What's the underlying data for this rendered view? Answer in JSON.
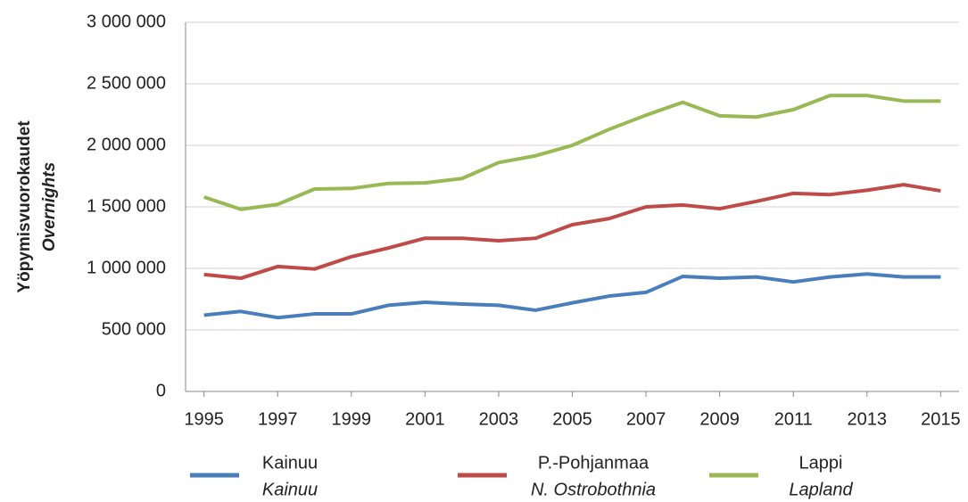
{
  "chart_data": {
    "type": "line",
    "y_label": "Yöpymisvuorokaudet",
    "y_label_en": "Overnights",
    "x": [
      1995,
      1996,
      1997,
      1998,
      1999,
      2000,
      2001,
      2002,
      2003,
      2004,
      2005,
      2006,
      2007,
      2008,
      2009,
      2010,
      2011,
      2012,
      2013,
      2014,
      2015
    ],
    "xlim": [
      1994.5,
      2015.5
    ],
    "xticks": [
      1995,
      1997,
      1999,
      2001,
      2003,
      2005,
      2007,
      2009,
      2011,
      2013,
      2015
    ],
    "ylim": [
      0,
      3000000
    ],
    "yticks": [
      0,
      {
        "value": 500000,
        "label": "500 000"
      },
      {
        "value": 1000000,
        "label": "1 000 000"
      },
      {
        "value": 1500000,
        "label": "1 500 000"
      },
      {
        "value": 2000000,
        "label": "2 000 000"
      },
      {
        "value": 2500000,
        "label": "2 500 000"
      },
      {
        "value": 3000000,
        "label": "3 000 000"
      }
    ],
    "grid": true,
    "legend": "bottom",
    "series": [
      {
        "name": "Kainuu",
        "name_en": "Kainuu",
        "color": "#4a7ebb",
        "values": [
          620000,
          650000,
          600000,
          630000,
          630000,
          700000,
          725000,
          710000,
          700000,
          660000,
          720000,
          775000,
          805000,
          935000,
          920000,
          930000,
          890000,
          930000,
          955000,
          930000,
          930000
        ]
      },
      {
        "name": "P.-Pohjanmaa",
        "name_en": "N. Ostrobothnia",
        "color": "#be4b48",
        "values": [
          950000,
          920000,
          1015000,
          995000,
          1095000,
          1165000,
          1245000,
          1245000,
          1225000,
          1245000,
          1355000,
          1405000,
          1500000,
          1515000,
          1485000,
          1545000,
          1610000,
          1600000,
          1635000,
          1680000,
          1630000
        ]
      },
      {
        "name": "Lappi",
        "name_en": "Lapland",
        "color": "#98b954",
        "values": [
          1580000,
          1480000,
          1520000,
          1645000,
          1650000,
          1690000,
          1695000,
          1730000,
          1860000,
          1915000,
          2000000,
          2130000,
          2245000,
          2350000,
          2240000,
          2230000,
          2290000,
          2405000,
          2405000,
          2360000,
          2360000
        ]
      }
    ]
  }
}
